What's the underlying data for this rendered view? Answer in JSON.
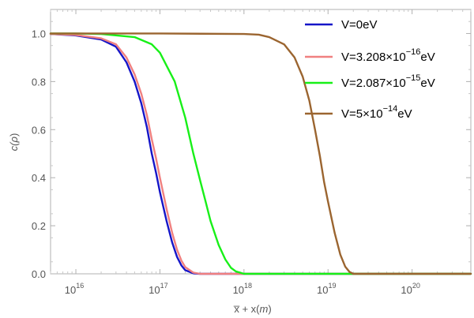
{
  "chart_data": {
    "type": "line",
    "xscale": "log",
    "xlim": [
      5000000000000000.0,
      5e+20
    ],
    "ylim": [
      0,
      1.1
    ],
    "grid": false,
    "legend_position": "top-right",
    "xlabel": {
      "base": "x̅ + x(",
      "italic": "m",
      "close": ")"
    },
    "ylabel": {
      "base": "c(",
      "italic": "ρ",
      "close": ")"
    },
    "yticks": [
      {
        "value": 0.0,
        "label": "0.0"
      },
      {
        "value": 0.2,
        "label": "0.2"
      },
      {
        "value": 0.4,
        "label": "0.4"
      },
      {
        "value": 0.6,
        "label": "0.6"
      },
      {
        "value": 0.8,
        "label": "0.8"
      },
      {
        "value": 1.0,
        "label": "1.0"
      }
    ],
    "xticks": [
      {
        "value": 1e+16,
        "base": "10",
        "exp": "16"
      },
      {
        "value": 1e+17,
        "base": "10",
        "exp": "17"
      },
      {
        "value": 1e+18,
        "base": "10",
        "exp": "18"
      },
      {
        "value": 1e+19,
        "base": "10",
        "exp": "19"
      },
      {
        "value": 1e+20,
        "base": "10",
        "exp": "20"
      }
    ],
    "series": [
      {
        "name": "V=0eV",
        "label": {
          "prefix": "V=0eV",
          "exp": "",
          "suffix": ""
        },
        "color": "#1515c8",
        "x": [
          5000000000000000.0,
          1e+16,
          2e+16,
          3e+16,
          4e+16,
          5e+16,
          6e+16,
          7e+16,
          8e+16,
          9e+16,
          1e+17,
          1.2e+17,
          1.4e+17,
          1.6e+17,
          1.8e+17,
          2e+17,
          2.5e+17,
          3e+17,
          5e+20
        ],
        "y": [
          0.998,
          0.992,
          0.975,
          0.945,
          0.88,
          0.8,
          0.71,
          0.61,
          0.5,
          0.42,
          0.34,
          0.22,
          0.13,
          0.07,
          0.035,
          0.015,
          0.002,
          0.0,
          0.0
        ]
      },
      {
        "name": "V=3.208×10⁻¹⁶eV",
        "label": {
          "prefix": "V=3.208×10",
          "exp": "−16",
          "suffix": "eV"
        },
        "color": "#f08080",
        "x": [
          5000000000000000.0,
          1e+16,
          2e+16,
          3e+16,
          4e+16,
          5e+16,
          6e+16,
          7e+16,
          8e+16,
          9e+16,
          1e+17,
          1.2e+17,
          1.4e+17,
          1.6e+17,
          1.8e+17,
          2e+17,
          2.5e+17,
          3e+17,
          5e+20
        ],
        "y": [
          0.998,
          0.994,
          0.98,
          0.955,
          0.9,
          0.83,
          0.75,
          0.66,
          0.56,
          0.48,
          0.4,
          0.27,
          0.17,
          0.1,
          0.055,
          0.028,
          0.005,
          0.0,
          0.0
        ]
      },
      {
        "name": "V=2.087×10⁻¹⁵eV",
        "label": {
          "prefix": "V=2.087×10",
          "exp": "−15",
          "suffix": "eV"
        },
        "color": "#18f018",
        "x": [
          5000000000000000.0,
          1e+16,
          2e+16,
          5e+16,
          8e+16,
          1e+17,
          1.5e+17,
          2e+17,
          2.5e+17,
          3e+17,
          3.5e+17,
          4e+17,
          5e+17,
          6e+17,
          7e+17,
          8e+17,
          1e+18,
          5e+20
        ],
        "y": [
          1.0,
          1.0,
          0.998,
          0.985,
          0.955,
          0.92,
          0.8,
          0.65,
          0.5,
          0.39,
          0.3,
          0.22,
          0.12,
          0.06,
          0.025,
          0.01,
          0.0,
          0.0
        ]
      },
      {
        "name": "V=5×10⁻¹⁴eV",
        "label": {
          "prefix": "V=5×10",
          "exp": "−14",
          "suffix": "eV"
        },
        "color": "#9b6530",
        "x": [
          5000000000000000.0,
          1e+17,
          1e+18,
          1.5e+18,
          2e+18,
          3e+18,
          4e+18,
          5e+18,
          6e+18,
          7e+18,
          8e+18,
          9e+18,
          1e+19,
          1.2e+19,
          1.4e+19,
          1.6e+19,
          1.8e+19,
          2e+19,
          5e+20
        ],
        "y": [
          1.0,
          1.0,
          0.998,
          0.995,
          0.985,
          0.955,
          0.9,
          0.82,
          0.72,
          0.6,
          0.49,
          0.38,
          0.3,
          0.17,
          0.08,
          0.03,
          0.008,
          0.0,
          0.0
        ]
      }
    ]
  }
}
